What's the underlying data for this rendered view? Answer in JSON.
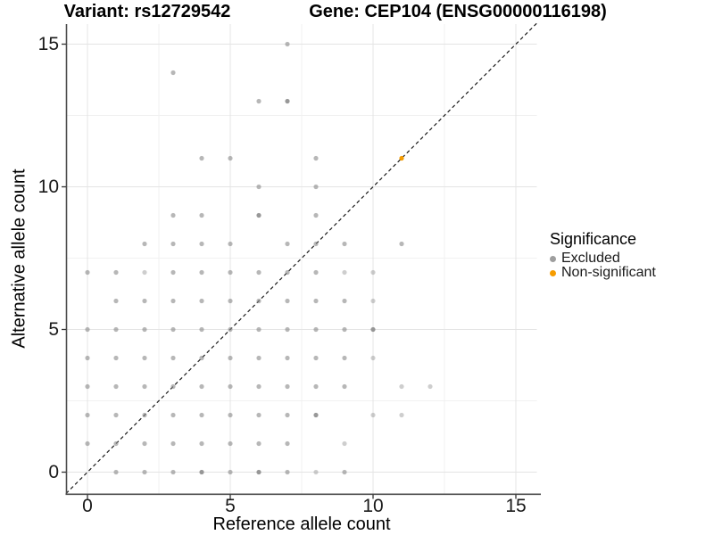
{
  "titles": {
    "left": "Variant: rs12729542",
    "right": "Gene: CEP104 (ENSG00000116198)"
  },
  "axes": {
    "x": {
      "label": "Reference allele count",
      "ticks": [
        0,
        5,
        10,
        15
      ],
      "minor_ticks": [
        2.5,
        7.5,
        12.5
      ],
      "range": [
        -0.75,
        15.75
      ]
    },
    "y": {
      "label": "Alternative allele count",
      "ticks": [
        0,
        5,
        10,
        15
      ],
      "minor_ticks": [
        2.5,
        7.5,
        12.5
      ],
      "range": [
        -0.75,
        15.75
      ]
    }
  },
  "legend": {
    "title": "Significance",
    "items": [
      {
        "label": "Excluded",
        "color": "#9e9e9e"
      },
      {
        "label": "Non-significant",
        "color": "#F69C00"
      }
    ]
  },
  "colors": {
    "background": "#ffffff",
    "grid_major": "#e4e4e4",
    "grid_minor": "#f1f1f1",
    "axis_line": "#4d4d4d",
    "tick_mark": "#333333",
    "abline": "#1a1a1a",
    "excluded_point": "#8a8a8a",
    "nonsignificant_point": "#F69C00"
  },
  "chart_data": {
    "type": "scatter",
    "title_left": "Variant: rs12729542",
    "title_right": "Gene: CEP104 (ENSG00000116198)",
    "xlabel": "Reference allele count",
    "ylabel": "Alternative allele count",
    "xlim": [
      -0.75,
      15.75
    ],
    "ylim": [
      -0.75,
      15.75
    ],
    "grid": true,
    "legend_position": "right",
    "abline": {
      "slope": 1,
      "intercept": 0,
      "style": "dashed"
    },
    "point_note": "third value = rendered opacity (overplot shade)",
    "series": [
      {
        "name": "Excluded",
        "points": [
          [
            7,
            15,
            0.62
          ],
          [
            3,
            14,
            0.62
          ],
          [
            6,
            13,
            0.62
          ],
          [
            7,
            13,
            0.88
          ],
          [
            4,
            11,
            0.62
          ],
          [
            5,
            11,
            0.62
          ],
          [
            8,
            11,
            0.62
          ],
          [
            6,
            10,
            0.62
          ],
          [
            8,
            10,
            0.62
          ],
          [
            3,
            9,
            0.62
          ],
          [
            4,
            9,
            0.62
          ],
          [
            6,
            9,
            0.88
          ],
          [
            8,
            9,
            0.62
          ],
          [
            2,
            8,
            0.62
          ],
          [
            3,
            8,
            0.62
          ],
          [
            4,
            8,
            0.62
          ],
          [
            5,
            8,
            0.62
          ],
          [
            7,
            8,
            0.62
          ],
          [
            8,
            8,
            0.62
          ],
          [
            9,
            8,
            0.62
          ],
          [
            11,
            8,
            0.62
          ],
          [
            0,
            7,
            0.62
          ],
          [
            1,
            7,
            0.62
          ],
          [
            2,
            7,
            0.42
          ],
          [
            3,
            7,
            0.62
          ],
          [
            4,
            7,
            0.62
          ],
          [
            5,
            7,
            0.62
          ],
          [
            6,
            7,
            0.62
          ],
          [
            7,
            7,
            0.62
          ],
          [
            8,
            7,
            0.62
          ],
          [
            9,
            7,
            0.42
          ],
          [
            10,
            7,
            0.42
          ],
          [
            1,
            6,
            0.62
          ],
          [
            2,
            6,
            0.62
          ],
          [
            3,
            6,
            0.62
          ],
          [
            4,
            6,
            0.62
          ],
          [
            5,
            6,
            0.62
          ],
          [
            6,
            6,
            0.62
          ],
          [
            7,
            6,
            0.62
          ],
          [
            8,
            6,
            0.62
          ],
          [
            9,
            6,
            0.62
          ],
          [
            10,
            6,
            0.42
          ],
          [
            0,
            5,
            0.62
          ],
          [
            1,
            5,
            0.62
          ],
          [
            2,
            5,
            0.62
          ],
          [
            3,
            5,
            0.62
          ],
          [
            4,
            5,
            0.62
          ],
          [
            5,
            5,
            0.62
          ],
          [
            6,
            5,
            0.62
          ],
          [
            7,
            5,
            0.62
          ],
          [
            8,
            5,
            0.62
          ],
          [
            9,
            5,
            0.62
          ],
          [
            10,
            5,
            0.88
          ],
          [
            0,
            4,
            0.62
          ],
          [
            1,
            4,
            0.62
          ],
          [
            2,
            4,
            0.62
          ],
          [
            3,
            4,
            0.62
          ],
          [
            4,
            4,
            0.62
          ],
          [
            5,
            4,
            0.62
          ],
          [
            6,
            4,
            0.62
          ],
          [
            7,
            4,
            0.62
          ],
          [
            8,
            4,
            0.62
          ],
          [
            9,
            4,
            0.62
          ],
          [
            10,
            4,
            0.42
          ],
          [
            0,
            3,
            0.62
          ],
          [
            1,
            3,
            0.62
          ],
          [
            2,
            3,
            0.62
          ],
          [
            3,
            3,
            0.62
          ],
          [
            4,
            3,
            0.62
          ],
          [
            5,
            3,
            0.62
          ],
          [
            6,
            3,
            0.62
          ],
          [
            7,
            3,
            0.62
          ],
          [
            8,
            3,
            0.62
          ],
          [
            9,
            3,
            0.62
          ],
          [
            11,
            3,
            0.42
          ],
          [
            12,
            3,
            0.42
          ],
          [
            0,
            2,
            0.62
          ],
          [
            1,
            2,
            0.62
          ],
          [
            2,
            2,
            0.62
          ],
          [
            3,
            2,
            0.62
          ],
          [
            4,
            2,
            0.62
          ],
          [
            5,
            2,
            0.62
          ],
          [
            6,
            2,
            0.62
          ],
          [
            7,
            2,
            0.62
          ],
          [
            8,
            2,
            0.88
          ],
          [
            10,
            2,
            0.42
          ],
          [
            11,
            2,
            0.42
          ],
          [
            0,
            1,
            0.62
          ],
          [
            1,
            1,
            0.62
          ],
          [
            2,
            1,
            0.62
          ],
          [
            3,
            1,
            0.62
          ],
          [
            4,
            1,
            0.62
          ],
          [
            5,
            1,
            0.62
          ],
          [
            6,
            1,
            0.62
          ],
          [
            7,
            1,
            0.62
          ],
          [
            9,
            1,
            0.42
          ],
          [
            1,
            0,
            0.62
          ],
          [
            2,
            0,
            0.62
          ],
          [
            3,
            0,
            0.62
          ],
          [
            4,
            0,
            0.88
          ],
          [
            5,
            0,
            0.62
          ],
          [
            6,
            0,
            0.88
          ],
          [
            7,
            0,
            0.62
          ],
          [
            8,
            0,
            0.42
          ],
          [
            9,
            0,
            0.62
          ]
        ]
      },
      {
        "name": "Non-significant",
        "points": [
          [
            11,
            11,
            1.0
          ]
        ]
      }
    ]
  }
}
